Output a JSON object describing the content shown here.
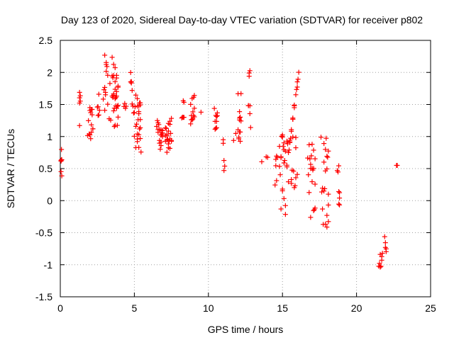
{
  "chart_data": {
    "type": "scatter",
    "title": "Day 123 of 2020, Sidereal Day-to-day VTEC variation (SDTVAR) for receiver p802",
    "xlabel": "GPS time / hours",
    "ylabel": "SDTVAR / TECUs",
    "xlim": [
      0,
      25
    ],
    "ylim": [
      -1.5,
      2.5
    ],
    "xticks": [
      0,
      5,
      10,
      15,
      20,
      25
    ],
    "yticks": [
      -1.5,
      -1,
      -0.5,
      0,
      0.5,
      1,
      1.5,
      2,
      2.5
    ],
    "xtick_labels": [
      "0",
      "5",
      "10",
      "15",
      "20",
      "25"
    ],
    "ytick_labels": [
      "-1.5",
      "-1",
      "-0.5",
      "0",
      "0.5",
      "1",
      "1.5",
      "2",
      "2.5"
    ],
    "grid": true,
    "marker": "plus",
    "color": "#ff0000",
    "series": [
      {
        "name": "SDTVAR",
        "x": [
          0.05,
          0.05,
          0.05,
          0.08,
          0.08,
          0.1,
          0.1,
          1.3,
          1.3,
          1.35,
          1.35,
          1.3,
          1.3,
          1.85,
          1.9,
          1.95,
          2.0,
          2.05,
          2.1,
          2.0,
          2.05,
          2.1,
          2.15,
          2.2,
          2.1,
          2.2,
          2.0,
          2.15,
          2.5,
          2.55,
          2.6,
          2.6,
          2.55,
          2.65,
          2.9,
          2.95,
          3.0,
          3.05,
          3.1,
          3.0,
          3.05,
          3.1,
          3.15,
          3.2,
          3.0,
          3.1,
          3.2,
          3.3,
          3.35,
          3.4,
          3.5,
          3.55,
          3.6,
          3.65,
          3.7,
          3.75,
          3.8,
          3.5,
          3.6,
          3.7,
          3.8,
          3.9,
          3.55,
          3.65,
          3.75,
          3.85,
          3.5,
          3.6,
          3.7,
          3.8,
          3.9,
          3.6,
          3.7,
          3.8,
          3.85,
          3.9,
          3.6,
          3.7,
          3.8,
          3.9,
          4.3,
          4.35,
          4.4,
          4.45,
          4.75,
          4.8,
          4.85,
          4.75,
          4.8,
          4.85,
          4.9,
          4.95,
          5.0,
          5.05,
          5.1,
          5.15,
          5.2,
          5.25,
          5.3,
          5.35,
          5.4,
          5.0,
          5.1,
          5.2,
          5.3,
          5.4,
          5.1,
          5.2,
          5.3,
          5.4,
          5.2,
          5.3,
          5.35,
          5.4,
          5.45,
          5.2,
          5.3,
          5.4,
          6.5,
          6.55,
          6.6,
          6.65,
          6.7,
          6.75,
          6.8,
          6.85,
          6.9,
          6.6,
          6.7,
          6.8,
          6.9,
          6.6,
          6.7,
          6.8,
          6.9,
          6.7,
          6.8,
          6.9,
          7.1,
          7.15,
          7.2,
          7.25,
          7.3,
          7.35,
          7.4,
          7.45,
          7.5,
          7.1,
          7.2,
          7.3,
          7.4,
          7.5,
          7.1,
          7.2,
          7.3,
          7.4,
          7.5,
          7.2,
          7.3,
          7.4,
          8.2,
          8.25,
          8.3,
          8.35,
          8.3,
          8.35,
          8.8,
          8.85,
          8.9,
          8.95,
          9.0,
          9.05,
          8.8,
          8.9,
          9.0,
          9.05,
          8.85,
          8.95,
          9.05,
          9.5,
          10.4,
          10.45,
          10.5,
          10.55,
          10.6,
          10.5,
          10.55,
          10.6,
          10.45,
          10.55,
          11.0,
          11.05,
          11.1,
          11.0,
          11.05,
          11.7,
          11.85,
          12.0,
          12.05,
          12.1,
          12.15,
          12.2,
          12.05,
          12.1,
          12.15,
          12.1,
          12.15,
          12.2,
          12.0,
          12.1,
          12.7,
          12.75,
          12.8,
          12.85,
          12.7,
          12.8,
          12.75,
          12.8,
          13.6,
          13.9,
          14.0,
          14.5,
          14.55,
          14.6,
          14.65,
          14.55,
          14.6,
          14.8,
          14.85,
          14.9,
          14.95,
          15.0,
          15.05,
          15.1,
          15.15,
          14.8,
          14.9,
          15.0,
          15.1,
          15.2,
          14.9,
          15.0,
          15.1,
          15.2,
          15.3,
          15.0,
          15.1,
          15.2,
          15.3,
          15.3,
          15.35,
          15.4,
          15.45,
          15.5,
          15.55,
          15.6,
          15.65,
          15.7,
          15.75,
          15.8,
          15.85,
          15.9,
          15.95,
          16.0,
          16.05,
          16.1,
          15.4,
          15.5,
          15.6,
          15.7,
          15.8,
          15.9,
          16.0,
          15.5,
          15.6,
          15.7,
          15.8,
          15.9,
          16.0,
          15.6,
          15.7,
          15.8,
          15.9,
          16.7,
          16.75,
          16.8,
          16.85,
          16.9,
          16.95,
          17.0,
          17.05,
          17.1,
          17.15,
          17.2,
          16.8,
          16.9,
          17.0,
          17.1,
          17.2,
          16.9,
          17.0,
          17.1,
          17.2,
          17.6,
          17.65,
          17.7,
          17.75,
          17.8,
          17.85,
          17.9,
          17.95,
          18.0,
          18.05,
          18.1,
          17.7,
          17.8,
          17.9,
          18.0,
          18.1,
          17.8,
          17.9,
          18.0,
          18.1,
          18.0,
          18.1,
          18.7,
          18.75,
          18.8,
          18.85,
          18.8,
          18.85,
          18.8,
          18.85,
          21.5,
          21.55,
          21.6,
          21.65,
          21.7,
          21.75,
          21.6,
          21.7,
          21.9,
          21.95,
          22.0,
          22.0,
          21.95,
          22.7,
          22.75
        ]
      }
    ]
  }
}
